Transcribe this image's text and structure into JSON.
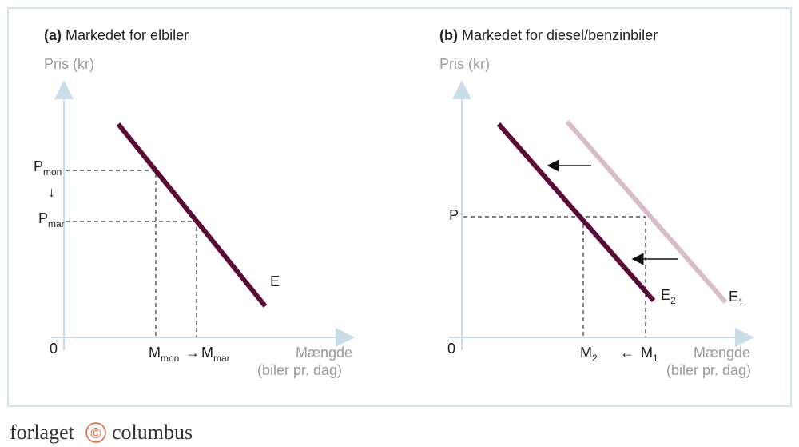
{
  "panels": [
    {
      "label": "(a)",
      "title": "Markedet for elbiler",
      "y_axis_label": "Pris (kr)",
      "x_axis_label": "Mængde",
      "x_axis_unit": "(biler pr. dag)",
      "origin": "0",
      "price_levels": [
        {
          "symbol": "P",
          "subscript": "mon"
        },
        {
          "symbol": "P",
          "subscript": "mar"
        }
      ],
      "price_change": "↓",
      "quantities": [
        {
          "symbol": "M",
          "subscript": "mon"
        },
        {
          "symbol": "M",
          "subscript": "mar"
        }
      ],
      "quantity_change": "→",
      "curves": [
        {
          "label": "E"
        }
      ]
    },
    {
      "label": "(b)",
      "title": "Markedet for diesel/benzinbiler",
      "y_axis_label": "Pris (kr)",
      "x_axis_label": "Mængde",
      "x_axis_unit": "(biler pr. dag)",
      "origin": "0",
      "price_levels": [
        {
          "symbol": "P"
        }
      ],
      "quantities": [
        {
          "symbol": "M",
          "subscript": "2"
        },
        {
          "symbol": "M",
          "subscript": "1"
        }
      ],
      "quantity_change": "←",
      "curves": [
        {
          "label": "E",
          "subscript": "2"
        },
        {
          "label": "E",
          "subscript": "1"
        }
      ]
    }
  ],
  "footer": {
    "publisher_left": "forlaget",
    "logo": "©",
    "publisher_right": "columbus"
  }
}
